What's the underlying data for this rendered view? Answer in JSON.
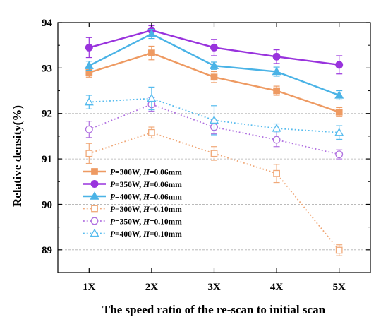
{
  "chart_data": {
    "type": "line",
    "title": "",
    "xlabel": "The speed ratio of the re-scan to initial scan",
    "ylabel": "Relative density(%)",
    "categories": [
      "1X",
      "2X",
      "3X",
      "4X",
      "5X"
    ],
    "ylim": [
      88.5,
      94
    ],
    "yticks": [
      89,
      90,
      91,
      92,
      93,
      94
    ],
    "grid": "horizontal-dashed",
    "legend_position": "lower-left",
    "series": [
      {
        "name": "P=300W, H=0.06mm",
        "legend": [
          {
            "t": "P",
            "i": true
          },
          {
            "t": "=300W, ",
            "i": false
          },
          {
            "t": "H",
            "i": true
          },
          {
            "t": "=0.06mm",
            "i": false
          }
        ],
        "values": [
          92.9,
          93.33,
          92.8,
          92.5,
          92.03
        ],
        "errors": [
          0.1,
          0.15,
          0.12,
          0.1,
          0.1
        ],
        "color": "#ee9a62",
        "line": "solid",
        "marker": "square",
        "filled": true
      },
      {
        "name": "P=350W, H=0.06mm",
        "legend": [
          {
            "t": "P",
            "i": true
          },
          {
            "t": "=350W, ",
            "i": false
          },
          {
            "t": "H",
            "i": true
          },
          {
            "t": "=0.06mm",
            "i": false
          }
        ],
        "values": [
          93.45,
          93.83,
          93.45,
          93.25,
          93.07
        ],
        "errors": [
          0.22,
          0.1,
          0.18,
          0.15,
          0.2
        ],
        "color": "#9933dd",
        "line": "solid",
        "marker": "circle",
        "filled": true
      },
      {
        "name": "P=400W, H=0.06mm",
        "legend": [
          {
            "t": "P",
            "i": true
          },
          {
            "t": "=400W, ",
            "i": false
          },
          {
            "t": "H",
            "i": true
          },
          {
            "t": "=0.06mm",
            "i": false
          }
        ],
        "values": [
          93.05,
          93.75,
          93.05,
          92.92,
          92.4
        ],
        "errors": [
          0.1,
          0.1,
          0.08,
          0.1,
          0.1
        ],
        "color": "#4ab3e6",
        "line": "solid",
        "marker": "triangle",
        "filled": true
      },
      {
        "name": "P=300W, H=0.10mm",
        "legend": [
          {
            "t": "P",
            "i": true
          },
          {
            "t": "=300W, ",
            "i": false
          },
          {
            "t": "H",
            "i": true
          },
          {
            "t": "=0.10mm",
            "i": false
          }
        ],
        "values": [
          91.12,
          91.58,
          91.12,
          90.68,
          88.99
        ],
        "errors": [
          0.22,
          0.12,
          0.15,
          0.2,
          0.12
        ],
        "color": "#f0a878",
        "line": "dotted",
        "marker": "square",
        "filled": false
      },
      {
        "name": "P=350W, H=0.10mm",
        "legend": [
          {
            "t": "P",
            "i": true
          },
          {
            "t": "=350W, ",
            "i": false
          },
          {
            "t": "H",
            "i": true
          },
          {
            "t": "=0.10mm",
            "i": false
          }
        ],
        "values": [
          91.65,
          92.2,
          91.7,
          91.42,
          91.1
        ],
        "errors": [
          0.18,
          0.15,
          0.15,
          0.15,
          0.1
        ],
        "color": "#b070e0",
        "line": "dotted",
        "marker": "circle",
        "filled": false
      },
      {
        "name": "P=400W, H=0.10mm",
        "legend": [
          {
            "t": "P",
            "i": true
          },
          {
            "t": "=400W, ",
            "i": false
          },
          {
            "t": "H",
            "i": true
          },
          {
            "t": "=0.10mm",
            "i": false
          }
        ],
        "values": [
          92.25,
          92.33,
          91.85,
          91.67,
          91.58
        ],
        "errors": [
          0.15,
          0.25,
          0.32,
          0.1,
          0.15
        ],
        "color": "#55bbee",
        "line": "dotted",
        "marker": "triangle",
        "filled": false
      }
    ]
  }
}
